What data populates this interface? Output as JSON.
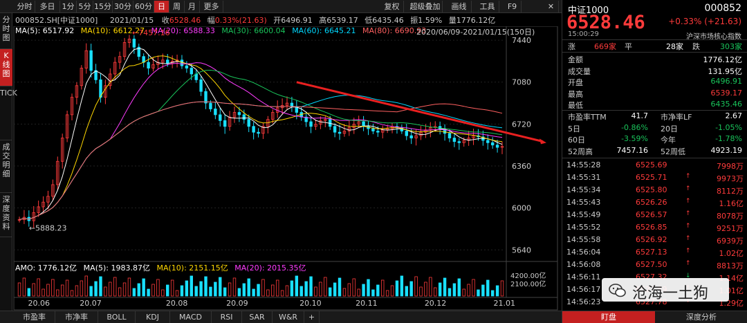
{
  "toolbar": {
    "tabs": [
      "分时",
      "多日",
      "1分",
      "5分",
      "15分",
      "30分",
      "60分",
      "日",
      "周",
      "月",
      "更多"
    ],
    "active_tab": "日",
    "right": [
      "复权",
      "超级叠加",
      "画线",
      "工具",
      "F9"
    ]
  },
  "left_tabs": [
    "分时图",
    "K线图",
    "TICK",
    "成交明细",
    "深度资料"
  ],
  "quote_line": {
    "code": "000852.SH[中证1000]",
    "date": "2021/01/15",
    "close_label": "收",
    "close": "6528.46",
    "chg_label": "幅",
    "chg": "0.33%(21.63)",
    "open_label": "开",
    "open": "6496.91",
    "high_label": "高",
    "high": "6539.17",
    "low_label": "低",
    "low": "6435.46",
    "amp_label": "振",
    "amp": "1.59%",
    "amt_label": "量",
    "amt": "1776.12亿"
  },
  "ma_line": {
    "ma5": "MA(5): 6517.92",
    "ma10": "MA(10): 6612.27",
    "ma20": "MA(20): 6588.33",
    "ma30": "MA(30): 6600.04",
    "ma60": "MA(60): 6645.21",
    "ma80": "MA(80): 6690.93",
    "range": "2020/06/09-2021/01/15(150日)"
  },
  "amo_line": {
    "amo": "AMO: 1776.12亿",
    "ma5": "MA(5): 1983.87亿",
    "ma10": "MA(10): 2151.15亿",
    "ma20": "MA(20): 2015.35亿"
  },
  "chart_data": {
    "type": "line",
    "title": "000852.SH 中证1000 日K",
    "y_ticks": [
      "7440",
      "7080",
      "6720",
      "6360",
      "6000",
      "5640"
    ],
    "vol_ticks": [
      "4200.00亿",
      "2100.00亿"
    ],
    "x_ticks": [
      "20.06",
      "20.07",
      "20.08",
      "20.09",
      "20.10",
      "20.11",
      "20.12",
      "21.01"
    ],
    "annotations": {
      "high": "7457.16",
      "low": "5888.23"
    },
    "ylim": [
      5600,
      7500
    ],
    "close_series": [
      5900,
      5920,
      5890,
      5960,
      6010,
      6050,
      6100,
      6200,
      6400,
      6600,
      6800,
      6950,
      7050,
      7200,
      7350,
      7180,
      7100,
      6950,
      7050,
      7150,
      7250,
      7300,
      7420,
      7450,
      7380,
      7300,
      7250,
      7200,
      7230,
      7250,
      7270,
      7240,
      7260,
      7270,
      7220,
      7200,
      7150,
      7100,
      7000,
      6900,
      6850,
      6800,
      6750,
      6700,
      6780,
      6820,
      6800,
      6760,
      6700,
      6650,
      6640,
      6700,
      6760,
      6820,
      6860,
      6880,
      6900,
      6870,
      6820,
      6780,
      6740,
      6700,
      6720,
      6750,
      6760,
      6700,
      6650,
      6640,
      6660,
      6690,
      6720,
      6740,
      6700,
      6680,
      6660,
      6650,
      6670,
      6680,
      6700,
      6690,
      6660,
      6620,
      6600,
      6620,
      6650,
      6670,
      6690,
      6700,
      6680,
      6640,
      6600,
      6570,
      6560,
      6580,
      6600,
      6620,
      6610,
      6580,
      6560,
      6540,
      6520,
      6528
    ]
  },
  "right_panel": {
    "name": "中证1000",
    "code": "000852",
    "price": "6528.46",
    "change": "+0.33% (+21.63)",
    "time": "15:00:29",
    "sub": "沪深市场核心指数",
    "breadth": {
      "up_label": "涨",
      "up": "669家",
      "flat_label": "平",
      "flat": "28家",
      "down_label": "跌",
      "down": "303家"
    },
    "fields": [
      {
        "label": "金额",
        "value": "1776.12亿",
        "color": "#ffffff"
      },
      {
        "label": "成交量",
        "value": "131.95亿",
        "color": "#ffffff"
      },
      {
        "label": "开盘",
        "value": "6496.91",
        "color": "#19c35a"
      },
      {
        "label": "最高",
        "value": "6539.17",
        "color": "#ff3b3b"
      },
      {
        "label": "最低",
        "value": "6435.46",
        "color": "#19c35a"
      }
    ],
    "ratios": [
      {
        "l1": "市盈率TTM",
        "v1": "41.7",
        "c1": "#ffffff",
        "l2": "市净率LF",
        "v2": "2.67",
        "c2": "#ffffff"
      },
      {
        "l1": "5日",
        "v1": "-0.86%",
        "c1": "#19c35a",
        "l2": "20日",
        "v2": "-1.05%",
        "c2": "#19c35a"
      },
      {
        "l1": "60日",
        "v1": "-3.59%",
        "c1": "#19c35a",
        "l2": "今年",
        "v2": "-1.78%",
        "c2": "#19c35a"
      },
      {
        "l1": "52周高",
        "v1": "7457.16",
        "c1": "#ffffff",
        "l2": "52周低",
        "v2": "4923.19",
        "c2": "#ffffff"
      }
    ],
    "ticks": [
      {
        "t": "14:55:28",
        "p": "6525.69",
        "a": "",
        "v": "7998万"
      },
      {
        "t": "14:55:31",
        "p": "6525.71",
        "a": "↑",
        "v": "9973万"
      },
      {
        "t": "14:55:34",
        "p": "6525.80",
        "a": "↑",
        "v": "8112万"
      },
      {
        "t": "14:55:43",
        "p": "6526.26",
        "a": "↑",
        "v": "1.16亿"
      },
      {
        "t": "14:55:49",
        "p": "6526.57",
        "a": "↑",
        "v": "8078万"
      },
      {
        "t": "14:55:52",
        "p": "6526.85",
        "a": "↑",
        "v": "9251万"
      },
      {
        "t": "14:55:58",
        "p": "6526.92",
        "a": "↑",
        "v": "6939万"
      },
      {
        "t": "14:56:04",
        "p": "6527.13",
        "a": "↑",
        "v": "1.02亿"
      },
      {
        "t": "14:56:08",
        "p": "6527.50",
        "a": "↑",
        "v": "8813万"
      },
      {
        "t": "14:56:11",
        "p": "6527.32",
        "a": "↓",
        "v": "1.14亿"
      },
      {
        "t": "14:56:17",
        "p": "6527.59",
        "a": "↑",
        "v": "1.01亿"
      },
      {
        "t": "14:56:23",
        "p": "6527.78",
        "a": "↑",
        "v": "1.29亿"
      }
    ],
    "bottom_tabs": [
      "盯盘",
      "深度分析"
    ]
  },
  "bottom_tabs": [
    "市盈率",
    "市净率",
    "BOLL",
    "KDJ",
    "MACD",
    "RSI",
    "SAR",
    "W&R",
    "+"
  ],
  "watermark": "沧海一土狗"
}
